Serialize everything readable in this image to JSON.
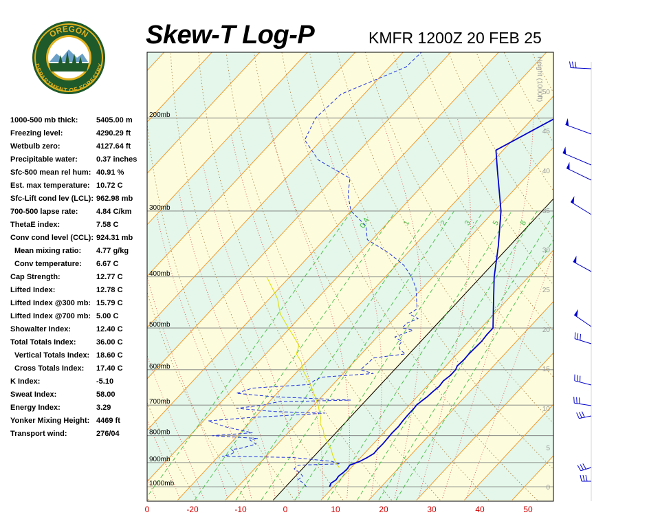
{
  "logo": {
    "text_top": "OREGON",
    "text_bottom": "DEPARTMENT OF FORESTRY",
    "icon": "oregon-forestry-seal"
  },
  "title": "Skew-T Log-P",
  "subtitle": "KMFR 1200Z 20 FEB 25",
  "indices": [
    {
      "label": "1000-500 mb thick:",
      "value": "5405.00 m"
    },
    {
      "label": "Freezing level:",
      "value": "4290.29 ft"
    },
    {
      "label": "Wetbulb zero:",
      "value": "4127.64 ft"
    },
    {
      "label": "Precipitable water:",
      "value": "0.37 inches"
    },
    {
      "label": "Sfc-500 mean rel hum:",
      "value": "40.91 %"
    },
    {
      "label": "Est. max temperature:",
      "value": "10.72 C"
    },
    {
      "label": "Sfc-Lift cond lev (LCL):",
      "value": "962.98 mb"
    },
    {
      "label": "700-500 lapse rate:",
      "value": "4.84 C/km"
    },
    {
      "label": "ThetaE index:",
      "value": "7.58 C"
    },
    {
      "label": "Conv cond level (CCL):",
      "value": "924.31 mb"
    },
    {
      "label": "Mean mixing ratio:",
      "value": "4.77 g/kg",
      "indent": true
    },
    {
      "label": "Conv temperature:",
      "value": "6.67 C",
      "indent": true
    },
    {
      "label": "Cap Strength:",
      "value": "12.77 C"
    },
    {
      "label": "Lifted Index:",
      "value": "12.78 C"
    },
    {
      "label": "Lifted Index @300 mb:",
      "value": "15.79 C"
    },
    {
      "label": "Lifted Index @700 mb:",
      "value": "5.00 C"
    },
    {
      "label": "Showalter Index:",
      "value": "12.40 C"
    },
    {
      "label": "Total Totals Index:",
      "value": "36.00 C"
    },
    {
      "label": "Vertical Totals Index:",
      "value": "18.60 C",
      "indent": true
    },
    {
      "label": "Cross Totals Index:",
      "value": "17.40 C",
      "indent": true
    },
    {
      "label": "K Index:",
      "value": "-5.10"
    },
    {
      "label": "Sweat Index:",
      "value": "58.00"
    },
    {
      "label": "Energy Index:",
      "value": "3.29"
    },
    {
      "label": "Yonker Mixing Height:",
      "value": "4469 ft"
    },
    {
      "label": "Transport wind:",
      "value": "276/04"
    }
  ],
  "chart_data": {
    "type": "line",
    "pressure_levels": [
      {
        "p": 1000,
        "label": "1000mb"
      },
      {
        "p": 900,
        "label": "900mb"
      },
      {
        "p": 800,
        "label": "800mb"
      },
      {
        "p": 700,
        "label": "700mb"
      },
      {
        "p": 600,
        "label": "600mb"
      },
      {
        "p": 500,
        "label": "500mb"
      },
      {
        "p": 400,
        "label": "400mb"
      },
      {
        "p": 300,
        "label": "300mb"
      },
      {
        "p": 200,
        "label": "200mb"
      }
    ],
    "x_ticks": [
      "0",
      "-20",
      "-10",
      "0",
      "10",
      "20",
      "30",
      "40",
      "50"
    ],
    "height_axis": {
      "label": "Height (1000ft)",
      "ticks": [
        "0",
        "5",
        "10",
        "15",
        "20",
        "25",
        "30",
        "35",
        "40",
        "45",
        "50"
      ]
    },
    "mixing_ratio_labels": [
      "0.4",
      "1",
      "2",
      "3",
      "5",
      "8"
    ],
    "colors": {
      "temperature": "#0000cc",
      "dewpoint": "#2233dd",
      "parcel": "#dddd00",
      "isotherm": "#ee9a33",
      "dry_adiabat": "#b08a50",
      "moist_adiabat": "#dd5555",
      "mixing_ratio": "#44bb44",
      "band_green": "#e4f7ea",
      "band_yellow": "#fdfdde",
      "xtick": "#cc0000",
      "gray": "#999999"
    },
    "series": [
      {
        "role": "temperature",
        "points": [
          [
            1000,
            9.2
          ],
          [
            985,
            8.8
          ],
          [
            970,
            9.2
          ],
          [
            955,
            9.0
          ],
          [
            940,
            9.3
          ],
          [
            925,
            9.4
          ],
          [
            910,
            9.2
          ],
          [
            895,
            10.6
          ],
          [
            880,
            11.4
          ],
          [
            865,
            12.0
          ],
          [
            850,
            11.9
          ],
          [
            830,
            12.0
          ],
          [
            810,
            11.9
          ],
          [
            790,
            11.8
          ],
          [
            770,
            11.9
          ],
          [
            750,
            11.7
          ],
          [
            730,
            11.6
          ],
          [
            710,
            11.6
          ],
          [
            700,
            11.5
          ],
          [
            690,
            11.7
          ],
          [
            675,
            12.1
          ],
          [
            660,
            12.3
          ],
          [
            645,
            12.6
          ],
          [
            630,
            12.4
          ],
          [
            615,
            12.8
          ],
          [
            600,
            12.8
          ],
          [
            590,
            12.4
          ],
          [
            575,
            12.6
          ],
          [
            560,
            12.5
          ],
          [
            545,
            12.6
          ],
          [
            530,
            12.7
          ],
          [
            515,
            12.5
          ],
          [
            500,
            12.5
          ],
          [
            450,
            7.9
          ],
          [
            400,
            2.8
          ],
          [
            350,
            -2.3
          ],
          [
            300,
            -8.6
          ],
          [
            250,
            -17.5
          ],
          [
            230,
            -21.5
          ],
          [
            200,
            -15.3
          ],
          [
            170,
            -12.8
          ],
          [
            150,
            -12.7
          ]
        ]
      },
      {
        "role": "dewpoint",
        "points": [
          [
            1000,
            4.3
          ],
          [
            985,
            3.2
          ],
          [
            970,
            1.2
          ],
          [
            955,
            1.5
          ],
          [
            940,
            0.2
          ],
          [
            925,
            -1.7
          ],
          [
            910,
            -1.5
          ],
          [
            905,
            7.0
          ],
          [
            895,
            4.6
          ],
          [
            880,
            -4.4
          ],
          [
            875,
            -19.2
          ],
          [
            870,
            -18.0
          ],
          [
            860,
            -17.4
          ],
          [
            850,
            -18.6
          ],
          [
            845,
            -16.8
          ],
          [
            830,
            -14.5
          ],
          [
            815,
            -16.6
          ],
          [
            810,
            -15.2
          ],
          [
            800,
            -25.3
          ],
          [
            790,
            -17.5
          ],
          [
            770,
            -24.2
          ],
          [
            750,
            -29.1
          ],
          [
            740,
            -21.6
          ],
          [
            730,
            -11.0
          ],
          [
            725,
            -6.1
          ],
          [
            720,
            -17.1
          ],
          [
            710,
            -25.5
          ],
          [
            700,
            -20.6
          ],
          [
            690,
            -18.1
          ],
          [
            685,
            -3.3
          ],
          [
            675,
            -20.1
          ],
          [
            665,
            -28.5
          ],
          [
            650,
            -26.1
          ],
          [
            645,
            -20.6
          ],
          [
            640,
            -14.9
          ],
          [
            630,
            -14.7
          ],
          [
            620,
            -13.9
          ],
          [
            610,
            -3.7
          ],
          [
            600,
            -7.1
          ],
          [
            585,
            -6.9
          ],
          [
            570,
            -6.7
          ],
          [
            560,
            -0.8
          ],
          [
            550,
            -2.7
          ],
          [
            540,
            -3.8
          ],
          [
            530,
            -4.0
          ],
          [
            520,
            -6.3
          ],
          [
            510,
            -4.8
          ],
          [
            505,
            -3.8
          ],
          [
            500,
            -6.5
          ],
          [
            490,
            -6.5
          ],
          [
            480,
            -5.0
          ],
          [
            470,
            -7.8
          ],
          [
            460,
            -7.1
          ],
          [
            420,
            -11.4
          ],
          [
            400,
            -14.5
          ],
          [
            380,
            -18.4
          ],
          [
            360,
            -24.0
          ],
          [
            340,
            -31.0
          ],
          [
            320,
            -34.0
          ],
          [
            300,
            -40.0
          ],
          [
            280,
            -43.7
          ],
          [
            260,
            -46.6
          ],
          [
            240,
            -56.8
          ],
          [
            220,
            -63.5
          ],
          [
            200,
            -65.5
          ],
          [
            180,
            -64.8
          ],
          [
            160,
            -56.5
          ],
          [
            140,
            -55.8
          ]
        ]
      },
      {
        "role": "parcel",
        "points": [
          [
            920,
            7.5
          ],
          [
            900,
            5.8
          ],
          [
            870,
            3.6
          ],
          [
            850,
            2.3
          ],
          [
            820,
            -0.2
          ],
          [
            800,
            -1.9
          ],
          [
            780,
            -3.2
          ],
          [
            760,
            -5.0
          ],
          [
            740,
            -6.1
          ],
          [
            720,
            -7.6
          ],
          [
            700,
            -9.1
          ],
          [
            680,
            -10.9
          ],
          [
            650,
            -13.7
          ],
          [
            620,
            -16.9
          ],
          [
            600,
            -19.2
          ],
          [
            580,
            -21.0
          ],
          [
            560,
            -23.6
          ],
          [
            540,
            -24.7
          ],
          [
            520,
            -27.4
          ],
          [
            500,
            -30.3
          ],
          [
            470,
            -34.8
          ],
          [
            440,
            -38.3
          ],
          [
            400,
            -44.8
          ]
        ]
      }
    ]
  }
}
